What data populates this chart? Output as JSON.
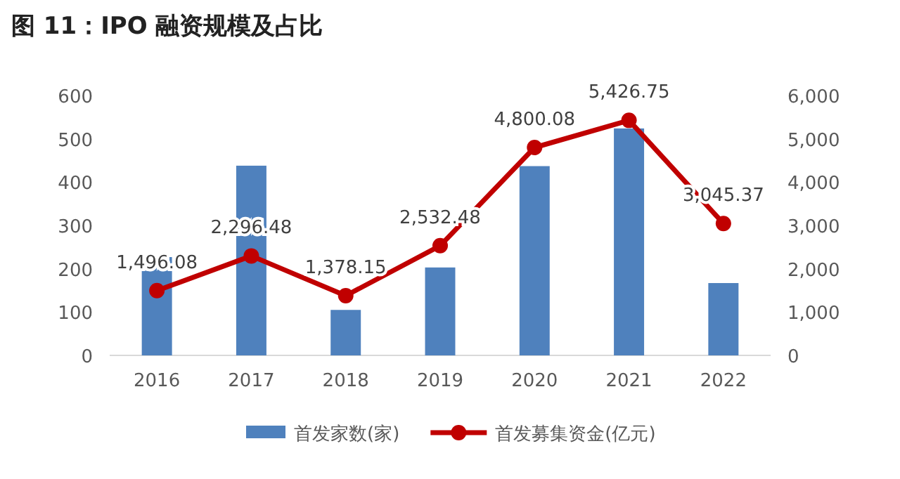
{
  "chart_data": {
    "type": "bar",
    "title": "图 11：IPO 融资规模及占比",
    "categories": [
      "2016",
      "2017",
      "2018",
      "2019",
      "2020",
      "2021",
      "2022"
    ],
    "series": [
      {
        "name": "首发家数(家)",
        "color": "#4f81bd",
        "values": [
          227,
          438,
          105,
          203,
          437,
          524,
          167
        ]
      },
      {
        "name": "首发募集资金(亿元)",
        "type": "line",
        "axis": "y2",
        "color": "#c00000",
        "marker": "circle",
        "values": [
          1496.08,
          2296.48,
          1378.15,
          2532.48,
          4800.08,
          5426.75,
          3045.37
        ],
        "value_labels": [
          "1,496.08",
          "2,296.48",
          "1,378.15",
          "2,532.48",
          "4,800.08",
          "5,426.75",
          "3,045.37"
        ]
      }
    ],
    "ylim": [
      0,
      600
    ],
    "yticks": [
      0,
      100,
      200,
      300,
      400,
      500,
      600
    ],
    "y2lim": [
      0,
      6000
    ],
    "y2ticks": [
      0,
      {
        "value": 1000,
        "label": "1,000"
      },
      {
        "value": 2000,
        "label": "2,000"
      },
      {
        "value": 3000,
        "label": "3,000"
      },
      {
        "value": 4000,
        "label": "4,000"
      },
      {
        "value": 5000,
        "label": "5,000"
      },
      {
        "value": 6000,
        "label": "6,000"
      }
    ],
    "grid": false,
    "legend": "bottom"
  }
}
